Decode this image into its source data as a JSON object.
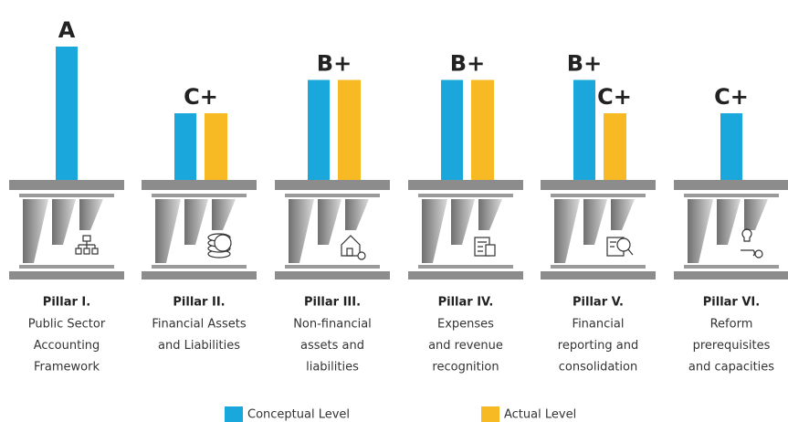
{
  "chart_data": {
    "type": "bar",
    "categories": [
      "Pillar I.",
      "Pillar II.",
      "Pillar III.",
      "Pillar IV.",
      "Pillar V.",
      "Pillar VI."
    ],
    "descriptions": [
      [
        "Public Sector",
        "Accounting",
        "Framework"
      ],
      [
        "Financial Assets",
        "and Liabilities"
      ],
      [
        "Non-financial",
        "assets and",
        "liabilities"
      ],
      [
        "Expenses",
        "and revenue",
        "recognition"
      ],
      [
        "Financial",
        "reporting and",
        "consolidation"
      ],
      [
        "Reform",
        "prerequisites",
        "and capacities"
      ]
    ],
    "ylim": [
      0,
      4
    ],
    "series": [
      {
        "name": "Conceptual Level",
        "color": "#1aa7dc",
        "values": [
          4,
          2,
          3,
          3,
          3,
          2
        ],
        "value_labels": [
          "A",
          "C+",
          "B+",
          "B+",
          "B+",
          "C+"
        ]
      },
      {
        "name": "Actual Level",
        "color": "#f7b924",
        "values": [
          null,
          2,
          3,
          3,
          2,
          null
        ],
        "value_labels": [
          null,
          null,
          null,
          null,
          "C+",
          null
        ]
      }
    ]
  }
}
